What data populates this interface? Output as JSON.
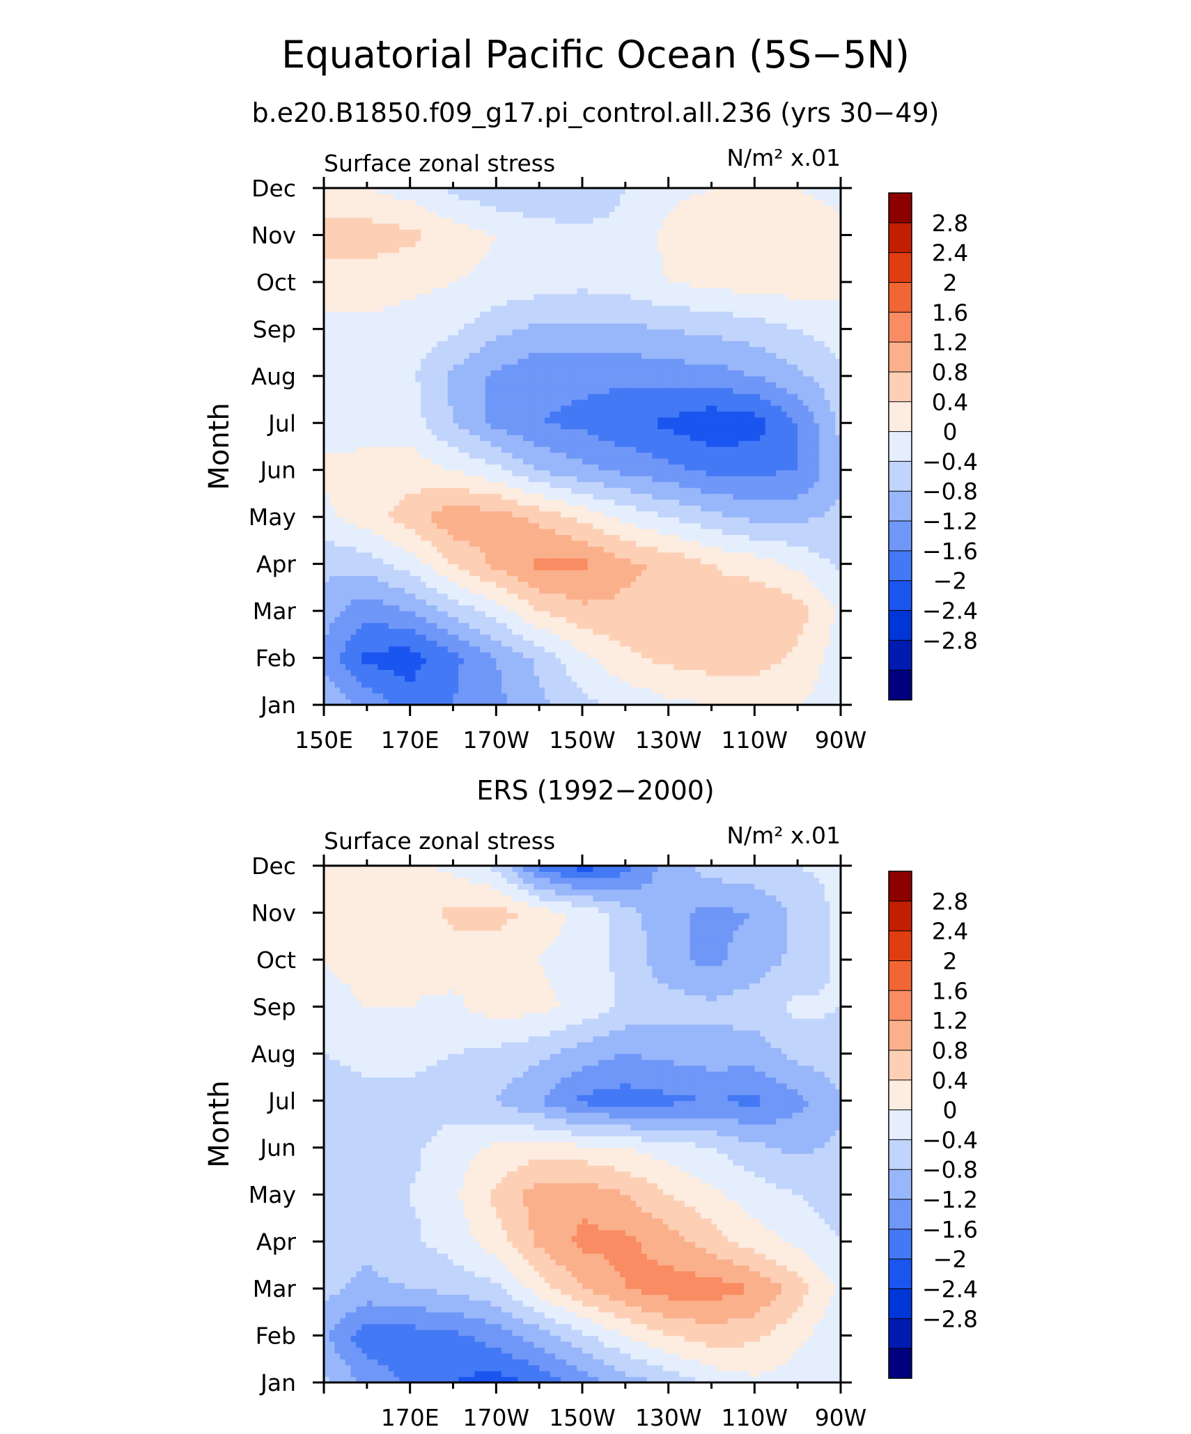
{
  "title": "Equatorial Pacific Ocean (5S−5N)",
  "subtitle": "b.e20.B1850.f09_g17.pi_control.all.236 (yrs 30−49)",
  "panel2_title": "ERS (1992−2000)",
  "colors": {
    "levels": [
      "#00007f",
      "#001bb0",
      "#0036d8",
      "#1a55f0",
      "#4479f5",
      "#6f97f8",
      "#98b6fa",
      "#c1d4fc",
      "#e4eefd",
      "#fdece0",
      "#fdd0b6",
      "#fbb08c",
      "#f98c62",
      "#f16634",
      "#e03d10",
      "#c21f00",
      "#8c0000"
    ]
  },
  "chart_data": [
    {
      "type": "heatmap",
      "left_label": "Surface zonal stress",
      "right_label": "N/m² x.01",
      "ylabel": "Month",
      "xlabel": "",
      "x_tick_labels": [
        "150E",
        "170E",
        "170W",
        "150W",
        "130W",
        "110W",
        "90W"
      ],
      "y_tick_labels": [
        "Jan",
        "Feb",
        "Mar",
        "Apr",
        "May",
        "Jun",
        "Jul",
        "Aug",
        "Sep",
        "Oct",
        "Nov",
        "Dec"
      ],
      "x_range_deg_east": [
        150,
        270
      ],
      "colorbar_labels": [
        "2.8",
        "2.4",
        "2",
        "1.6",
        "1.2",
        "0.8",
        "0.4",
        "0",
        "−0.4",
        "−0.8",
        "−1.2",
        "−1.6",
        "−2",
        "−2.4",
        "−2.8"
      ],
      "levels": [
        -2.8,
        -2.4,
        -2.0,
        -1.6,
        -1.2,
        -0.8,
        -0.4,
        0,
        0.4,
        0.8,
        1.2,
        1.6,
        2.0,
        2.4,
        2.8
      ],
      "x": [
        150,
        160,
        170,
        180,
        190,
        200,
        210,
        220,
        230,
        240,
        250,
        260,
        270
      ],
      "y": [
        "Jan",
        "Feb",
        "Mar",
        "Apr",
        "May",
        "Jun",
        "Jul",
        "Aug",
        "Sep",
        "Oct",
        "Nov",
        "Dec"
      ],
      "z": [
        [
          -0.5,
          -0.9,
          -1.4,
          -1.2,
          -0.9,
          -0.5,
          -0.1,
          0.1,
          0.3,
          0.4,
          0.5,
          0.4,
          0.2
        ],
        [
          -0.9,
          -1.7,
          -1.8,
          -1.3,
          -0.8,
          -0.3,
          0.3,
          0.7,
          0.9,
          1.0,
          1.0,
          0.7,
          0.2
        ],
        [
          -0.6,
          -1.1,
          -0.8,
          -0.3,
          0.2,
          0.8,
          1.1,
          1.1,
          1.1,
          1.0,
          1.2,
          1.0,
          0.3
        ],
        [
          -0.3,
          -0.2,
          0.2,
          0.8,
          1.3,
          1.7,
          1.7,
          1.3,
          1.1,
          0.8,
          0.6,
          0.3,
          -0.1
        ],
        [
          0.3,
          0.6,
          1.0,
          1.5,
          1.4,
          1.1,
          0.7,
          0.3,
          0.0,
          -0.3,
          -0.5,
          -0.5,
          -0.3
        ],
        [
          0.5,
          0.5,
          0.6,
          0.4,
          0.1,
          -0.4,
          -0.7,
          -0.9,
          -1.1,
          -1.3,
          -1.3,
          -1.2,
          -0.5
        ],
        [
          0.2,
          0.3,
          0.2,
          -0.4,
          -0.9,
          -1.2,
          -1.3,
          -1.5,
          -1.7,
          -1.9,
          -1.8,
          -1.2,
          -0.3
        ],
        [
          0.1,
          0.2,
          0.1,
          -0.5,
          -0.9,
          -1.1,
          -1.1,
          -1.1,
          -1.0,
          -1.0,
          -0.8,
          -0.5,
          -0.1
        ],
        [
          0.3,
          0.3,
          0.2,
          0.1,
          -0.3,
          -0.5,
          -0.5,
          -0.5,
          -0.4,
          -0.3,
          -0.2,
          0.0,
          0.2
        ],
        [
          0.6,
          0.6,
          0.5,
          0.4,
          0.3,
          0.2,
          0.1,
          0.2,
          0.4,
          0.5,
          0.6,
          0.6,
          0.5
        ],
        [
          1.0,
          1.0,
          0.9,
          0.6,
          0.4,
          0.2,
          0.1,
          0.1,
          0.5,
          0.7,
          0.7,
          0.6,
          0.5
        ],
        [
          0.5,
          0.4,
          0.2,
          -0.1,
          -0.3,
          -0.4,
          -0.3,
          0.0,
          0.3,
          0.4,
          0.4,
          0.4,
          0.3
        ]
      ]
    },
    {
      "type": "heatmap",
      "left_label": "Surface zonal stress",
      "right_label": "N/m² x.01",
      "ylabel": "Month",
      "xlabel": "",
      "x_tick_labels": [
        "170E",
        "170W",
        "150W",
        "130W",
        "110W",
        "90W"
      ],
      "y_tick_labels": [
        "Jan",
        "Feb",
        "Mar",
        "Apr",
        "May",
        "Jun",
        "Jul",
        "Aug",
        "Sep",
        "Oct",
        "Nov",
        "Dec"
      ],
      "x_range_deg_east": [
        150,
        270
      ],
      "colorbar_labels": [
        "2.8",
        "2.4",
        "2",
        "1.6",
        "1.2",
        "0.8",
        "0.4",
        "0",
        "−0.4",
        "−0.8",
        "−1.2",
        "−1.6",
        "−2",
        "−2.4",
        "−2.8"
      ],
      "levels": [
        -2.8,
        -2.4,
        -2.0,
        -1.6,
        -1.2,
        -0.8,
        -0.4,
        0,
        0.4,
        0.8,
        1.2,
        1.6,
        2.0,
        2.4,
        2.8
      ],
      "x": [
        150,
        160,
        170,
        180,
        190,
        200,
        210,
        220,
        230,
        240,
        250,
        260,
        270
      ],
      "y": [
        "Jan",
        "Feb",
        "Mar",
        "Apr",
        "May",
        "Jun",
        "Jul",
        "Aug",
        "Sep",
        "Oct",
        "Nov",
        "Dec"
      ],
      "z": [
        [
          -0.3,
          -0.9,
          -1.3,
          -1.6,
          -1.8,
          -1.5,
          -1.0,
          -0.6,
          -0.3,
          0.1,
          0.3,
          0.2,
          0.0
        ],
        [
          -0.7,
          -1.5,
          -1.4,
          -1.3,
          -1.0,
          -0.6,
          -0.1,
          0.4,
          0.8,
          1.0,
          0.9,
          0.5,
          0.1
        ],
        [
          -0.3,
          -0.5,
          -0.4,
          -0.3,
          -0.1,
          0.6,
          1.2,
          1.6,
          1.8,
          1.8,
          1.6,
          1.0,
          0.3
        ],
        [
          -0.2,
          -0.3,
          -0.1,
          0.2,
          0.6,
          1.3,
          1.7,
          1.7,
          1.4,
          1.0,
          0.6,
          0.3,
          0.0
        ],
        [
          -0.2,
          -0.1,
          0.0,
          0.3,
          0.9,
          1.4,
          1.5,
          1.2,
          0.8,
          0.5,
          0.2,
          0.0,
          -0.2
        ],
        [
          -0.4,
          -0.3,
          -0.1,
          0.2,
          0.5,
          0.6,
          0.5,
          0.4,
          0.2,
          0.0,
          -0.3,
          -0.5,
          -0.3
        ],
        [
          -0.2,
          -0.1,
          -0.1,
          -0.2,
          -0.4,
          -0.8,
          -1.3,
          -1.4,
          -1.3,
          -1.2,
          -1.3,
          -0.9,
          -0.5
        ],
        [
          0.0,
          0.1,
          0.1,
          0.0,
          -0.1,
          -0.3,
          -0.6,
          -0.8,
          -0.7,
          -0.6,
          -0.6,
          -0.3,
          -0.1
        ],
        [
          0.2,
          0.4,
          0.4,
          0.3,
          0.6,
          0.5,
          0.3,
          -0.1,
          -0.2,
          -0.3,
          -0.2,
          0.1,
          0.0
        ],
        [
          0.4,
          0.6,
          0.5,
          0.6,
          0.5,
          0.4,
          0.2,
          -0.1,
          -0.7,
          -0.9,
          -0.6,
          -0.3,
          0.1
        ],
        [
          0.5,
          0.5,
          0.6,
          0.9,
          1.0,
          0.6,
          0.3,
          -0.2,
          -0.7,
          -0.9,
          -0.8,
          -0.3,
          0.1
        ],
        [
          0.5,
          0.6,
          0.5,
          0.3,
          -0.1,
          -1.3,
          -1.8,
          -1.4,
          -0.6,
          -0.2,
          -0.1,
          0.0,
          0.1
        ]
      ]
    }
  ]
}
